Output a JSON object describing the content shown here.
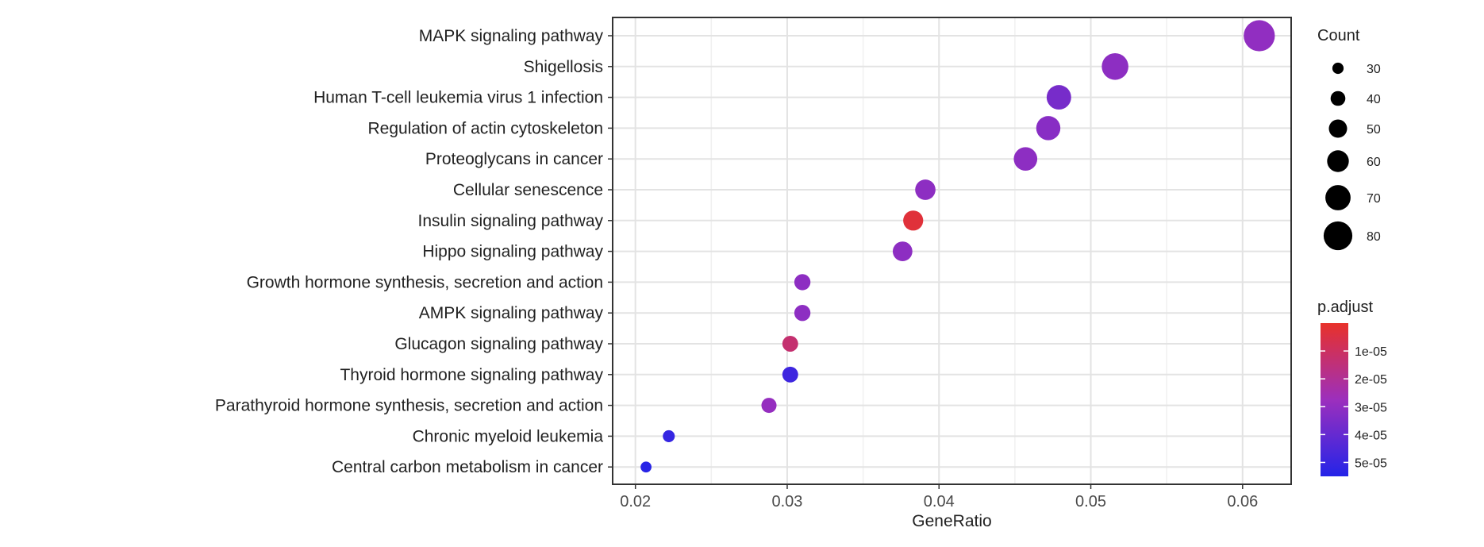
{
  "chart_data": {
    "type": "scatter",
    "xlabel": "GeneRatio",
    "ylabel": "",
    "xlim": [
      0.0185,
      0.0632
    ],
    "x_ticks": [
      0.02,
      0.03,
      0.04,
      0.05,
      0.06
    ],
    "x_tick_labels": [
      "0.02",
      "0.03",
      "0.04",
      "0.05",
      "0.06"
    ],
    "grid": true,
    "legend_position": "right",
    "colors": {
      "low_p": "#e8312a",
      "mid_p": "#9c2fbd",
      "high_p": "#2424e8"
    },
    "categories": [
      "MAPK signaling pathway",
      "Shigellosis",
      "Human T-cell leukemia virus 1 infection",
      "Regulation of actin cytoskeleton",
      "Proteoglycans in cancer",
      "Cellular senescence",
      "Insulin signaling pathway",
      "Hippo signaling pathway",
      "Growth hormone synthesis, secretion and action",
      "AMPK signaling pathway",
      "Glucagon signaling pathway",
      "Thyroid hormone signaling pathway",
      "Parathyroid hormone synthesis, secretion and action",
      "Chronic myeloid leukemia",
      "Central carbon metabolism in cancer"
    ],
    "points": [
      {
        "term": "MAPK signaling pathway",
        "gene_ratio": 0.0611,
        "count": 87,
        "p_adjust": 3e-05
      },
      {
        "term": "Shigellosis",
        "gene_ratio": 0.0516,
        "count": 74,
        "p_adjust": 3.1e-05
      },
      {
        "term": "Human T-cell leukemia virus 1 infection",
        "gene_ratio": 0.0479,
        "count": 68,
        "p_adjust": 3.6e-05
      },
      {
        "term": "Regulation of actin cytoskeleton",
        "gene_ratio": 0.0472,
        "count": 67,
        "p_adjust": 3.2e-05
      },
      {
        "term": "Proteoglycans in cancer",
        "gene_ratio": 0.0457,
        "count": 65,
        "p_adjust": 3.1e-05
      },
      {
        "term": "Cellular senescence",
        "gene_ratio": 0.0391,
        "count": 56,
        "p_adjust": 3.1e-05
      },
      {
        "term": "Insulin signaling pathway",
        "gene_ratio": 0.0383,
        "count": 55,
        "p_adjust": 3e-06
      },
      {
        "term": "Hippo signaling pathway",
        "gene_ratio": 0.0376,
        "count": 54,
        "p_adjust": 3.1e-05
      },
      {
        "term": "Growth hormone synthesis, secretion and action",
        "gene_ratio": 0.031,
        "count": 44,
        "p_adjust": 3.1e-05
      },
      {
        "term": "AMPK signaling pathway",
        "gene_ratio": 0.031,
        "count": 44,
        "p_adjust": 3.1e-05
      },
      {
        "term": "Glucagon signaling pathway",
        "gene_ratio": 0.0302,
        "count": 43,
        "p_adjust": 1.3e-05
      },
      {
        "term": "Thyroid hormone signaling pathway",
        "gene_ratio": 0.0302,
        "count": 43,
        "p_adjust": 4.9e-05
      },
      {
        "term": "Parathyroid hormone synthesis, secretion and action",
        "gene_ratio": 0.0288,
        "count": 41,
        "p_adjust": 2.9e-05
      },
      {
        "term": "Chronic myeloid leukemia",
        "gene_ratio": 0.0222,
        "count": 32,
        "p_adjust": 5.1e-05
      },
      {
        "term": "Central carbon metabolism in cancer",
        "gene_ratio": 0.0207,
        "count": 29,
        "p_adjust": 5.4e-05
      }
    ],
    "size_legend": {
      "title": "Count",
      "values": [
        30,
        40,
        50,
        60,
        70,
        80
      ],
      "labels": [
        "30",
        "40",
        "50",
        "60",
        "70",
        "80"
      ]
    },
    "color_legend": {
      "title": "p.adjust",
      "range": [
        0.0,
        5.5e-05
      ],
      "ticks": [
        1e-05,
        2e-05,
        3e-05,
        4e-05,
        5e-05
      ],
      "labels": [
        "1e-05",
        "2e-05",
        "3e-05",
        "4e-05",
        "5e-05"
      ]
    }
  }
}
